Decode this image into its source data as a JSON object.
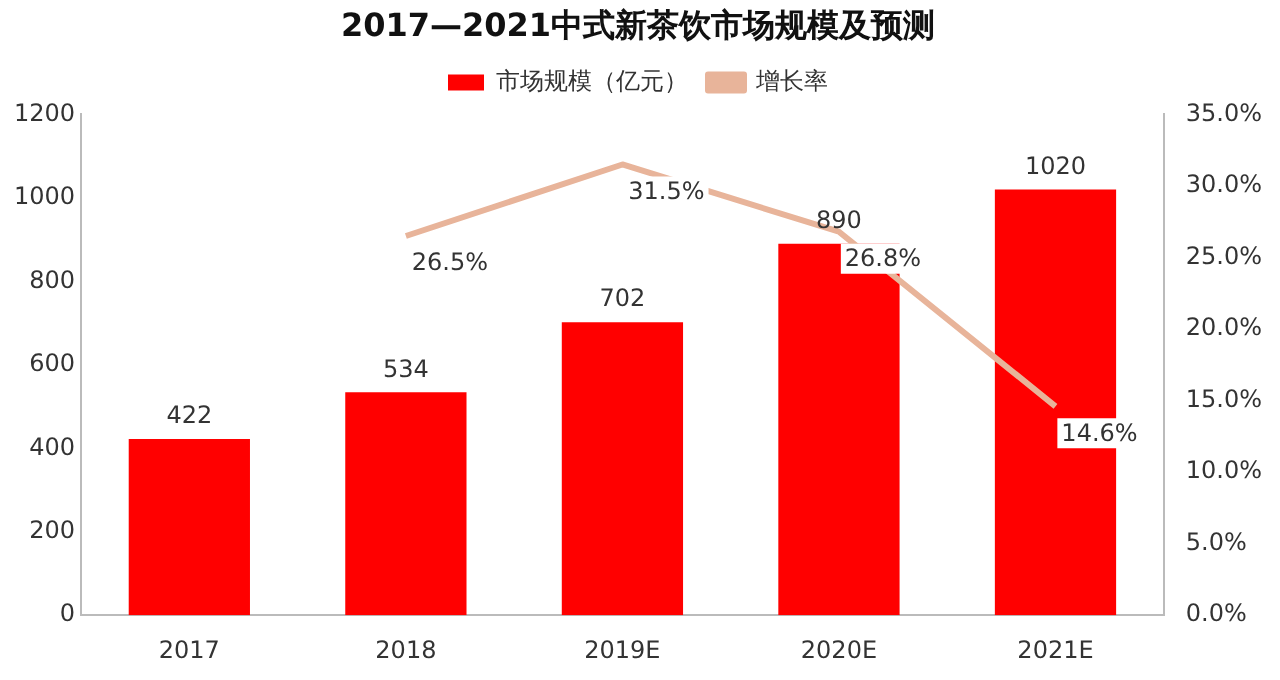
{
  "chart_data": {
    "type": "bar",
    "title": "2017—2021中式新茶饮市场规模及预测",
    "categories": [
      "2017",
      "2018",
      "2019E",
      "2020E",
      "2021E"
    ],
    "series": [
      {
        "name": "市场规模（亿元）",
        "type": "bar",
        "color": "#ff0000",
        "values": [
          422,
          534,
          702,
          890,
          1020
        ],
        "value_labels": [
          "422",
          "534",
          "702",
          "890",
          "1020"
        ]
      },
      {
        "name": "增长率",
        "type": "line",
        "axis": "y2",
        "color": "#e8b49a",
        "values": [
          null,
          26.5,
          31.5,
          26.8,
          14.6
        ],
        "value_labels": [
          null,
          "26.5%",
          "31.5%",
          "26.8%",
          "14.6%"
        ]
      }
    ],
    "ylim": [
      0,
      1200
    ],
    "yticks": [
      0,
      200,
      400,
      600,
      800,
      1000,
      1200
    ],
    "y2lim": [
      0,
      35
    ],
    "y2ticks": [
      {
        "value": 0,
        "label": "0.0%"
      },
      {
        "value": 5,
        "label": "5.0%"
      },
      {
        "value": 10,
        "label": "10.0%"
      },
      {
        "value": 15,
        "label": "15.0%"
      },
      {
        "value": 20,
        "label": "20.0%"
      },
      {
        "value": 25,
        "label": "25.0%"
      },
      {
        "value": 30,
        "label": "30.0%"
      },
      {
        "value": 35,
        "label": "35.0%"
      }
    ],
    "grid": false,
    "legend": "top",
    "marker": "none"
  }
}
